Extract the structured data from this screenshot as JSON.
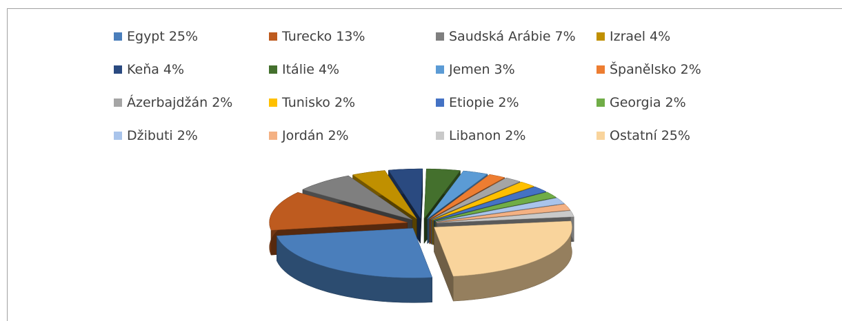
{
  "chart_data": {
    "type": "pie3d",
    "categories": [
      "Egypt",
      "Turecko",
      "Saudská Arábie",
      "Izrael",
      "Keňa",
      "Itálie",
      "Jemen",
      "Španělsko",
      "Ázerbajdžán",
      "Tunisko",
      "Etiopie",
      "Georgia",
      "Džibuti",
      "Jordán",
      "Libanon",
      "Ostatní"
    ],
    "values": [
      25,
      13,
      7,
      4,
      4,
      4,
      3,
      2,
      2,
      2,
      2,
      2,
      2,
      2,
      2,
      25
    ],
    "value_labels": [
      "25%",
      "13%",
      "7%",
      "4%",
      "4%",
      "4%",
      "3%",
      "2%",
      "2%",
      "2%",
      "2%",
      "2%",
      "2%",
      "2%",
      "2%",
      "25%"
    ],
    "colors": [
      "#4a7ebb",
      "#be5b1f",
      "#7f7f7f",
      "#c09000",
      "#2a4a80",
      "#44702d",
      "#5b9bd5",
      "#ed7d31",
      "#a5a5a5",
      "#ffc000",
      "#4472c4",
      "#70ad47",
      "#a9c4eb",
      "#f4b183",
      "#c9c9c9",
      "#f9d49c"
    ]
  }
}
